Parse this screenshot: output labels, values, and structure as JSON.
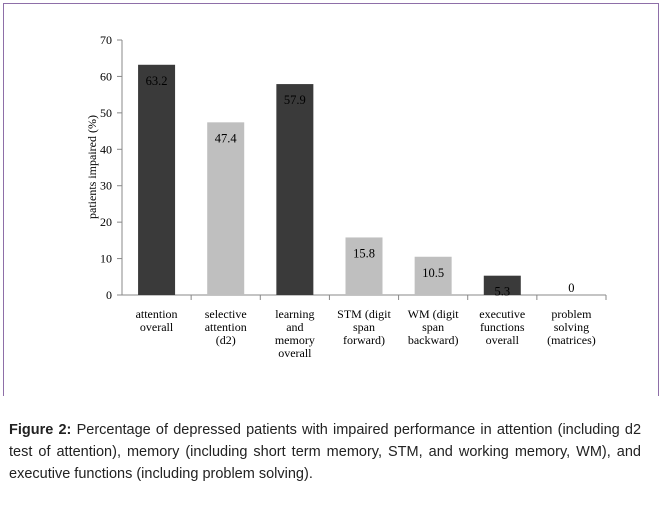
{
  "chart_data": {
    "type": "bar",
    "y_label": "patients impaired (%)",
    "categories": [
      "attention\noverall",
      "selective\nattention\n(d2)",
      "learning\nand\nmemory\noverall",
      "STM (digit\nspan\nforward)",
      "WM (digit\nspan\nbackward)",
      "executive\nfunctions\noverall",
      "problem\nsolving\n(matrices)"
    ],
    "values": [
      63.2,
      47.4,
      57.9,
      15.8,
      10.5,
      5.3,
      0
    ],
    "colors": [
      "#3a3a3a",
      "#bfbfbf",
      "#3a3a3a",
      "#bfbfbf",
      "#bfbfbf",
      "#3a3a3a",
      "#bfbfbf"
    ],
    "ylim": [
      0,
      70
    ],
    "yticks": [
      0,
      10,
      20,
      30,
      40,
      50,
      60,
      70
    ],
    "grid": false
  },
  "caption": {
    "label": "Figure 2:",
    "text": "Percentage of depressed patients with impaired performance in attention (including d2 test of attention), memory (including short term memory, STM, and working memory, WM), and executive functions (including problem solving)."
  }
}
